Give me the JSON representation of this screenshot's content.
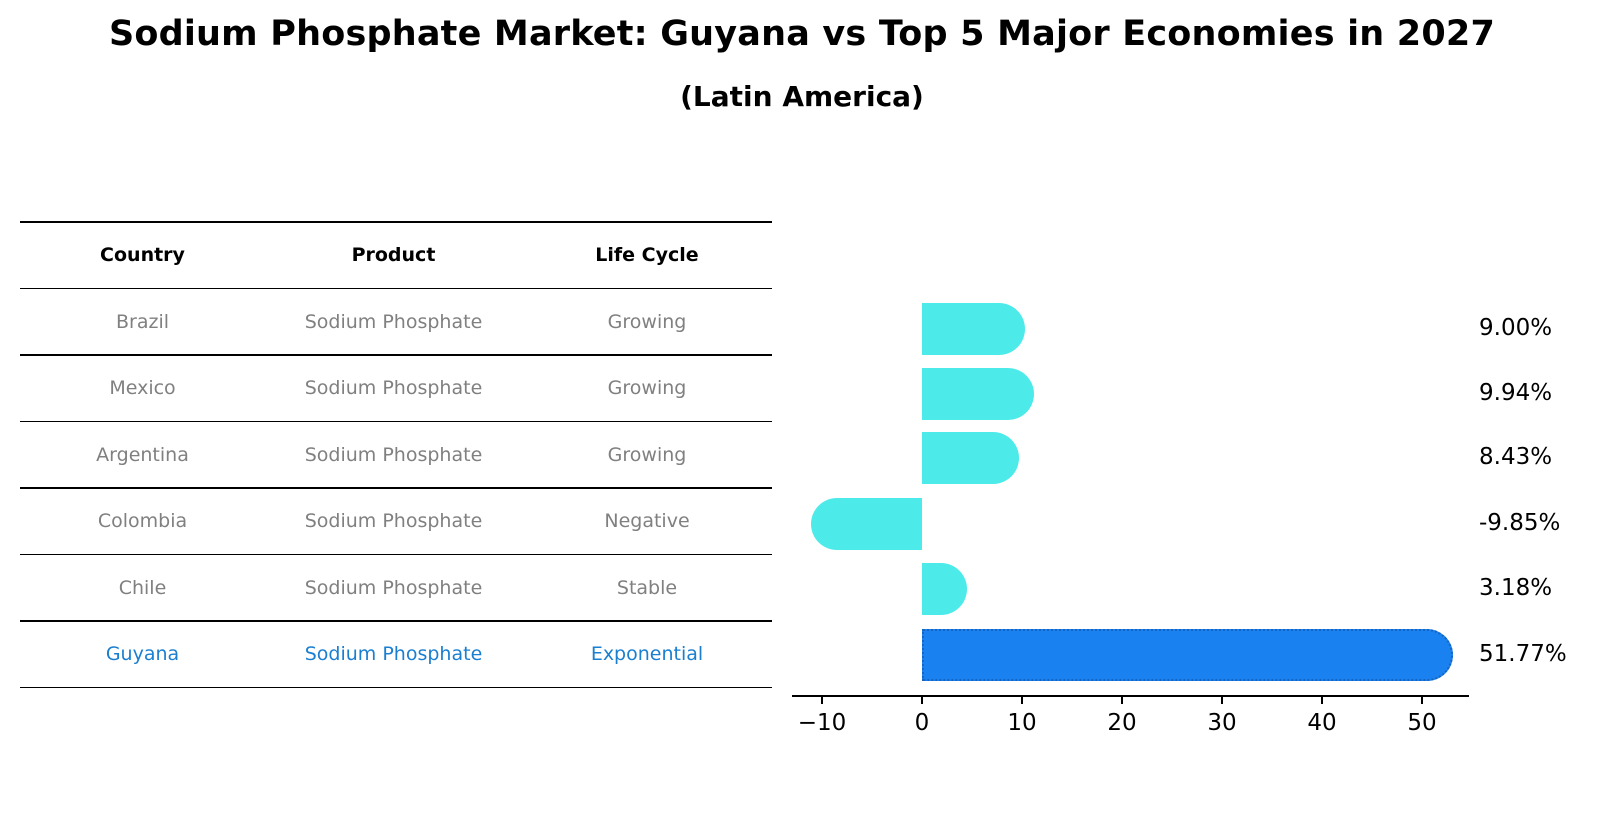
{
  "title": "Sodium Phosphate Market: Guyana vs Top 5 Major Economies in 2027",
  "subtitle": "(Latin America)",
  "table": {
    "headers": [
      "Country",
      "Product",
      "Life Cycle"
    ],
    "rows": [
      {
        "country": "Brazil",
        "product": "Sodium Phosphate",
        "life_cycle": "Growing",
        "highlight": false
      },
      {
        "country": "Mexico",
        "product": "Sodium Phosphate",
        "life_cycle": "Growing",
        "highlight": false
      },
      {
        "country": "Argentina",
        "product": "Sodium Phosphate",
        "life_cycle": "Growing",
        "highlight": false
      },
      {
        "country": "Colombia",
        "product": "Sodium Phosphate",
        "life_cycle": "Negative",
        "highlight": false
      },
      {
        "country": "Chile",
        "product": "Sodium Phosphate",
        "life_cycle": "Stable",
        "highlight": false
      },
      {
        "country": "Guyana",
        "product": "Sodium Phosphate",
        "life_cycle": "Exponential",
        "highlight": true
      }
    ]
  },
  "colors": {
    "bar_default": "#4deaea",
    "bar_highlight": "#1a82f0",
    "text_muted": "#808080",
    "text_highlight": "#1a7fd1"
  },
  "chart_data": {
    "type": "bar",
    "orientation": "horizontal",
    "title": "Sodium Phosphate Market: Guyana vs Top 5 Major Economies in 2027",
    "subtitle": "(Latin America)",
    "categories": [
      "Brazil",
      "Mexico",
      "Argentina",
      "Colombia",
      "Chile",
      "Guyana"
    ],
    "values": [
      9.0,
      9.94,
      8.43,
      -9.85,
      3.18,
      51.77
    ],
    "value_labels": [
      "9.00%",
      "9.94%",
      "8.43%",
      "-9.85%",
      "3.18%",
      "51.77%"
    ],
    "highlight_category": "Guyana",
    "xlabel": "",
    "ylabel": "",
    "xlim": [
      -13,
      55
    ],
    "xticks": [
      -10,
      0,
      10,
      20,
      30,
      40,
      50
    ],
    "xtick_labels": [
      "−10",
      "0",
      "10",
      "20",
      "30",
      "40",
      "50"
    ],
    "grid": false,
    "legend": null
  }
}
